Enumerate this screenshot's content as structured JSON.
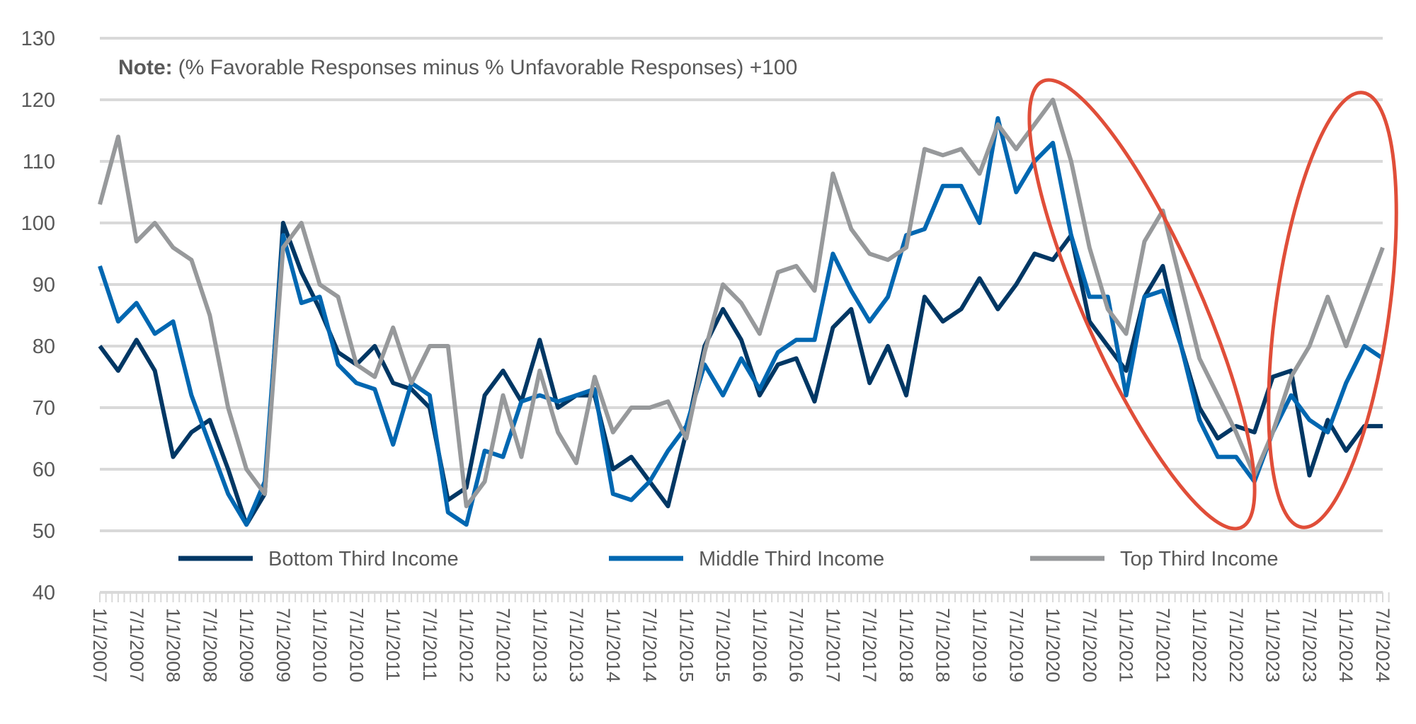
{
  "chart_data": {
    "type": "line",
    "title": "",
    "note_label": "Note:",
    "note_text": "(% Favorable Responses minus % Unfavorable Responses) +100",
    "xlabel": "",
    "ylabel": "",
    "ylim": [
      40,
      130
    ],
    "yticks": [
      "40",
      "50",
      "60",
      "70",
      "80",
      "90",
      "100",
      "110",
      "120",
      "130"
    ],
    "xlim": [
      "2007-01",
      "2024-07"
    ],
    "xtick_labels": [
      "1/1/2007",
      "7/1/2007",
      "1/1/2008",
      "7/1/2008",
      "1/1/2009",
      "7/1/2009",
      "1/1/2010",
      "7/1/2010",
      "1/1/2011",
      "7/1/2011",
      "1/1/2012",
      "7/1/2012",
      "1/1/2013",
      "7/1/2013",
      "1/1/2014",
      "7/1/2014",
      "1/1/2015",
      "7/1/2015",
      "1/1/2016",
      "7/1/2016",
      "1/1/2017",
      "7/1/2017",
      "1/1/2018",
      "7/1/2018",
      "1/1/2019",
      "7/1/2019",
      "1/1/2020",
      "7/1/2020",
      "1/1/2021",
      "7/1/2021",
      "1/1/2022",
      "7/1/2022",
      "1/1/2023",
      "7/1/2023",
      "1/1/2024",
      "7/1/2024"
    ],
    "grid": true,
    "legend_position": "bottom",
    "x": [
      "2007-01",
      "2007-04",
      "2007-07",
      "2007-10",
      "2008-01",
      "2008-04",
      "2008-07",
      "2008-10",
      "2009-01",
      "2009-04",
      "2009-07",
      "2009-10",
      "2010-01",
      "2010-04",
      "2010-07",
      "2010-10",
      "2011-01",
      "2011-04",
      "2011-07",
      "2011-10",
      "2012-01",
      "2012-04",
      "2012-07",
      "2012-10",
      "2013-01",
      "2013-04",
      "2013-07",
      "2013-10",
      "2014-01",
      "2014-04",
      "2014-07",
      "2014-10",
      "2015-01",
      "2015-04",
      "2015-07",
      "2015-10",
      "2016-01",
      "2016-04",
      "2016-07",
      "2016-10",
      "2017-01",
      "2017-04",
      "2017-07",
      "2017-10",
      "2018-01",
      "2018-04",
      "2018-07",
      "2018-10",
      "2019-01",
      "2019-04",
      "2019-07",
      "2019-10",
      "2020-01",
      "2020-04",
      "2020-07",
      "2020-10",
      "2021-01",
      "2021-04",
      "2021-07",
      "2021-10",
      "2022-01",
      "2022-04",
      "2022-07",
      "2022-10",
      "2023-01",
      "2023-04",
      "2023-07",
      "2023-10",
      "2024-01",
      "2024-04",
      "2024-07"
    ],
    "series": [
      {
        "name": "Bottom Third Income",
        "color": "#003764",
        "values": [
          80,
          76,
          81,
          76,
          62,
          66,
          68,
          60,
          51,
          56,
          100,
          92,
          86,
          79,
          77,
          80,
          74,
          73,
          70,
          55,
          57,
          72,
          76,
          71,
          81,
          70,
          72,
          72,
          60,
          62,
          58,
          54,
          66,
          80,
          86,
          81,
          72,
          77,
          78,
          71,
          83,
          86,
          74,
          80,
          72,
          88,
          84,
          86,
          91,
          86,
          90,
          95,
          94,
          98,
          84,
          80,
          76,
          88,
          93,
          80,
          70,
          65,
          67,
          66,
          75,
          76,
          59,
          68,
          63,
          67,
          67
        ]
      },
      {
        "name": "Middle Third Income",
        "color": "#0067B1",
        "values": [
          93,
          84,
          87,
          82,
          84,
          72,
          64,
          56,
          51,
          58,
          98,
          87,
          88,
          77,
          74,
          73,
          64,
          74,
          72,
          53,
          51,
          63,
          62,
          71,
          72,
          71,
          72,
          73,
          56,
          55,
          58,
          63,
          67,
          77,
          72,
          78,
          73,
          79,
          81,
          81,
          95,
          89,
          84,
          88,
          98,
          99,
          106,
          106,
          100,
          117,
          105,
          110,
          113,
          98,
          88,
          88,
          72,
          88,
          89,
          80,
          68,
          62,
          62,
          58,
          66,
          72,
          68,
          66,
          74,
          80,
          78
        ]
      },
      {
        "name": "Top Third Income",
        "color": "#97999B",
        "values": [
          103,
          114,
          97,
          100,
          96,
          94,
          85,
          70,
          60,
          56,
          96,
          100,
          90,
          88,
          77,
          75,
          83,
          74,
          80,
          80,
          54,
          58,
          72,
          62,
          76,
          66,
          61,
          75,
          66,
          70,
          70,
          71,
          65,
          79,
          90,
          87,
          82,
          92,
          93,
          89,
          108,
          99,
          95,
          94,
          96,
          112,
          111,
          112,
          108,
          116,
          112,
          116,
          120,
          110,
          96,
          86,
          82,
          97,
          102,
          90,
          78,
          72,
          66,
          59,
          66,
          75,
          80,
          88,
          80,
          88,
          96
        ]
      }
    ],
    "annotation_color": "#E04E39"
  }
}
